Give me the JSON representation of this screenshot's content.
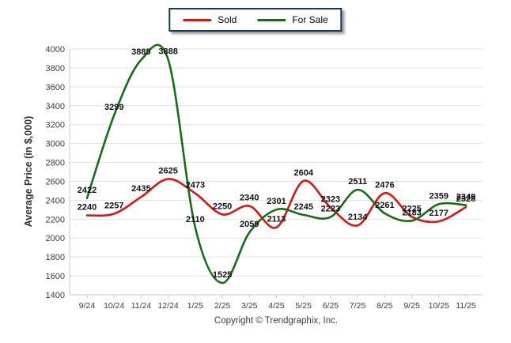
{
  "chart_data": {
    "type": "line",
    "categories": [
      "9/24",
      "10/24",
      "11/24",
      "12/24",
      "1/25",
      "2/25",
      "3/25",
      "4/25",
      "5/25",
      "6/25",
      "7/25",
      "8/25",
      "9/25",
      "10/25",
      "11/25"
    ],
    "series": [
      {
        "name": "Sold",
        "color": "#df1111",
        "values": [
          2240,
          2257,
          2435,
          2625,
          2473,
          2250,
          2340,
          2113,
          2604,
          2323,
          2134,
          2476,
          2225,
          2177,
          2328
        ]
      },
      {
        "name": "For Sale",
        "color": "#156e15",
        "values": [
          2422,
          3299,
          3885,
          3888,
          2110,
          1525,
          2059,
          2301,
          2245,
          2223,
          2511,
          2261,
          2183,
          2359,
          2349
        ]
      }
    ],
    "title": "",
    "xlabel": "",
    "ylabel": "Average Price (in $,000)",
    "ylim": [
      1400,
      4000
    ],
    "ytick_step": 200,
    "grid": true,
    "legend_position": "top-center",
    "data_labels": true,
    "grid_color": "#e2e2e2",
    "axis_color": "#c8c8c8",
    "tick_label_color": "#3b3b3b",
    "data_label_color": "#111111"
  },
  "footer": {
    "copyright": "Copyright © Trendgraphix, Inc."
  }
}
